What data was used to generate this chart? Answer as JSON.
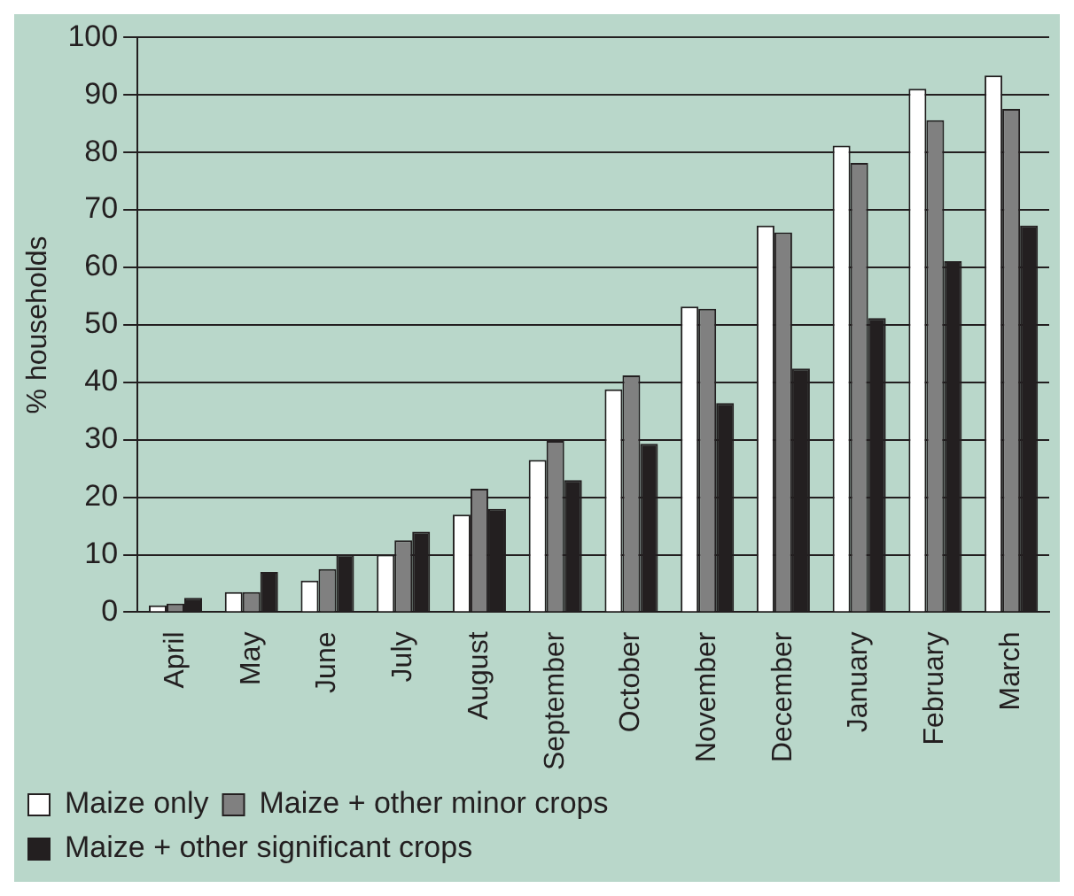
{
  "chart_data": {
    "type": "bar",
    "ylabel": "% households",
    "categories": [
      "April",
      "May",
      "June",
      "July",
      "August",
      "September",
      "October",
      "November",
      "December",
      "January",
      "February",
      "March"
    ],
    "series": [
      {
        "name": "Maize only",
        "color": "#ffffff",
        "values": [
          1.2,
          3.5,
          5.5,
          10,
          17,
          26.5,
          38.8,
          53.2,
          67.3,
          81.2,
          91.1,
          93.4
        ]
      },
      {
        "name": "Maize + other minor crops",
        "color": "#808080",
        "values": [
          1.5,
          3.5,
          7.5,
          12.5,
          21.5,
          29.8,
          41.2,
          52.8,
          66.1,
          78.2,
          85.6,
          87.6
        ]
      },
      {
        "name": "Maize + other significant crops",
        "color": "#231f20",
        "values": [
          2.5,
          7,
          10,
          14,
          18,
          23,
          29.3,
          36.4,
          42.4,
          51.2,
          61.1,
          67.3
        ]
      }
    ],
    "ylim": [
      0,
      100
    ],
    "yticks": [
      0,
      10,
      20,
      30,
      40,
      50,
      60,
      70,
      80,
      90,
      100
    ],
    "grid": "y",
    "legend": "bottom"
  }
}
